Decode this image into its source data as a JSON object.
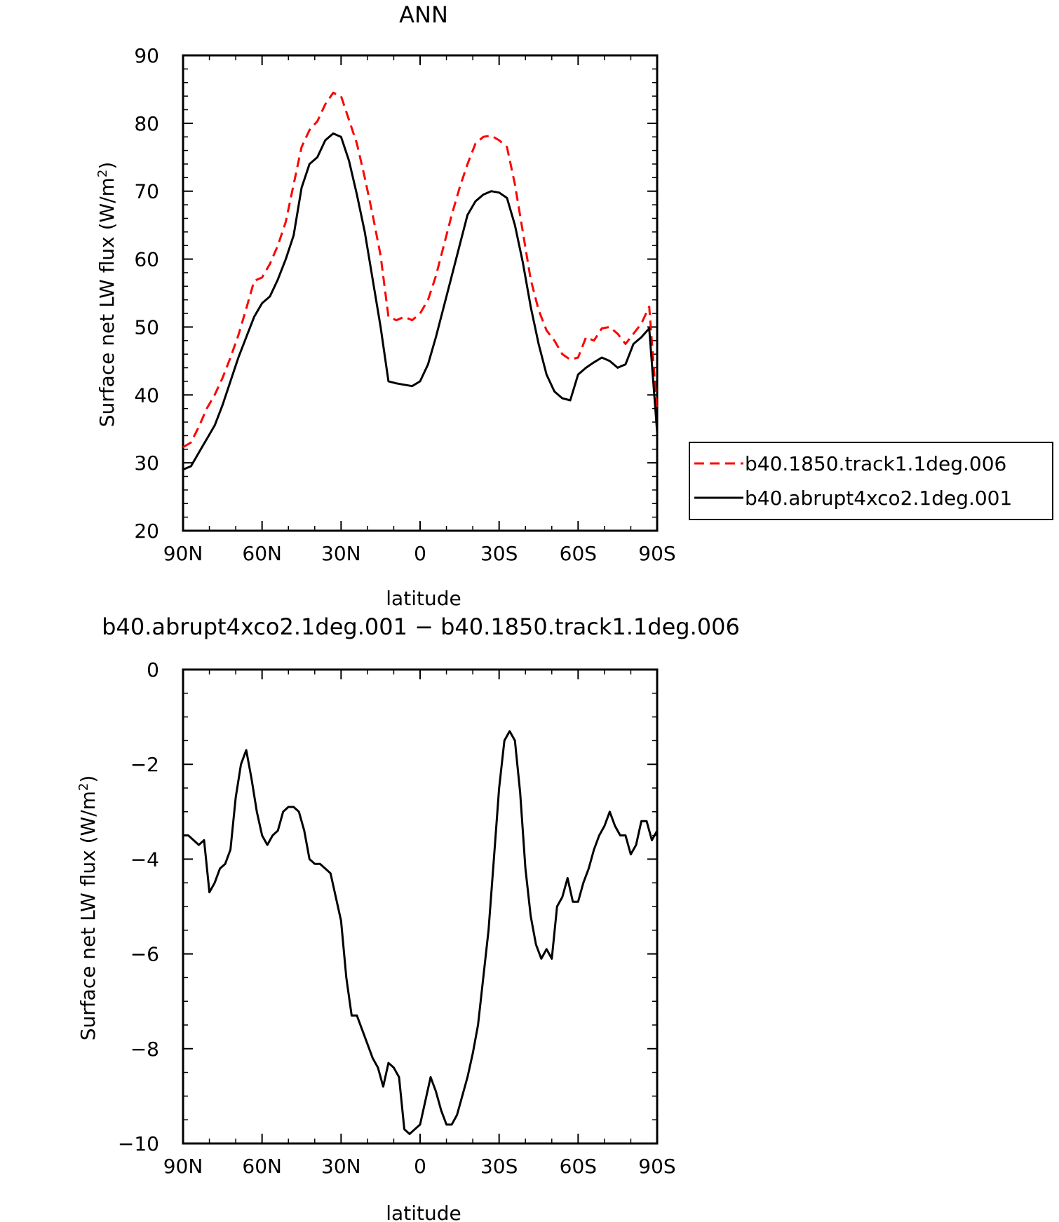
{
  "chart_data": [
    {
      "type": "line",
      "title": "ANN",
      "xlabel": "latitude",
      "ylabel": "Surface net LW flux (W/m",
      "ylabel_sup": "2",
      "ylabel_close": ")",
      "xlim": [
        90,
        -90
      ],
      "ylim": [
        20,
        90
      ],
      "x_ticks": [
        90,
        60,
        30,
        0,
        -30,
        -60,
        -90
      ],
      "x_tick_labels": [
        "90N",
        "60N",
        "30N",
        "0",
        "30S",
        "60S",
        "90S"
      ],
      "y_ticks": [
        20,
        30,
        40,
        50,
        60,
        70,
        80,
        90
      ],
      "y_tick_labels": [
        "20",
        "30",
        "40",
        "50",
        "60",
        "70",
        "80",
        "90"
      ],
      "grid": false,
      "legend": "right",
      "series": [
        {
          "name": "b40.1850.track1.1deg.006",
          "color": "#ff0000",
          "dash": "dashed",
          "x": [
            90,
            87,
            84,
            81,
            78,
            75,
            72,
            69,
            66,
            63,
            60,
            57,
            54,
            51,
            48,
            45,
            42,
            39,
            36,
            33,
            30,
            27,
            24,
            21,
            18,
            15,
            12,
            9,
            6,
            3,
            0,
            -3,
            -6,
            -9,
            -12,
            -15,
            -18,
            -21,
            -24,
            -27,
            -30,
            -33,
            -36,
            -39,
            -42,
            -45,
            -48,
            -51,
            -54,
            -57,
            -60,
            -63,
            -66,
            -69,
            -72,
            -75,
            -78,
            -81,
            -84,
            -87,
            -90
          ],
          "y": [
            32.3,
            33.0,
            35.3,
            38.0,
            40.0,
            42.5,
            45.5,
            48.8,
            52.7,
            56.8,
            57.3,
            59.3,
            62.0,
            65.5,
            71.0,
            76.5,
            79.0,
            80.3,
            82.8,
            84.5,
            84.0,
            80.5,
            77.0,
            72.0,
            66.5,
            60.5,
            51.5,
            51.0,
            51.5,
            51.0,
            52.0,
            54.0,
            57.5,
            62.0,
            66.5,
            70.5,
            74.0,
            77.0,
            78.0,
            78.2,
            77.5,
            76.5,
            71.0,
            64.0,
            57.0,
            52.5,
            49.5,
            48.0,
            46.0,
            45.2,
            45.5,
            48.5,
            48.0,
            49.8,
            50.0,
            49.0,
            47.5,
            49.0,
            50.5,
            53.0,
            37.5
          ]
        },
        {
          "name": "b40.abrupt4xco2.1deg.001",
          "color": "#000000",
          "dash": "solid",
          "x": [
            90,
            87,
            84,
            81,
            78,
            75,
            72,
            69,
            66,
            63,
            60,
            57,
            54,
            51,
            48,
            45,
            42,
            39,
            36,
            33,
            30,
            27,
            24,
            21,
            18,
            15,
            12,
            9,
            6,
            3,
            0,
            -3,
            -6,
            -9,
            -12,
            -15,
            -18,
            -21,
            -24,
            -27,
            -30,
            -33,
            -36,
            -39,
            -42,
            -45,
            -48,
            -51,
            -54,
            -57,
            -60,
            -63,
            -66,
            -69,
            -72,
            -75,
            -78,
            -81,
            -84,
            -87,
            -90
          ],
          "y": [
            29.0,
            29.5,
            31.5,
            33.5,
            35.5,
            38.5,
            42.0,
            45.5,
            48.5,
            51.5,
            53.5,
            54.5,
            57.0,
            60.0,
            63.5,
            70.5,
            74.0,
            75.0,
            77.5,
            78.5,
            78.0,
            74.5,
            69.5,
            64.0,
            57.0,
            50.0,
            42.0,
            41.7,
            41.5,
            41.3,
            42.0,
            44.5,
            48.5,
            53.0,
            57.5,
            62.0,
            66.5,
            68.5,
            69.5,
            70.0,
            69.8,
            69.0,
            65.0,
            59.5,
            53.0,
            47.5,
            43.0,
            40.5,
            39.5,
            39.2,
            43.0,
            44.0,
            44.8,
            45.5,
            45.0,
            44.0,
            44.5,
            47.5,
            48.5,
            49.8,
            34.5
          ]
        }
      ]
    },
    {
      "type": "line",
      "title": "b40.abrupt4xco2.1deg.001 − b40.1850.track1.1deg.006",
      "xlabel": "latitude",
      "ylabel": "Surface net LW flux (W/m",
      "ylabel_sup": "2",
      "ylabel_close": ")",
      "xlim": [
        90,
        -90
      ],
      "ylim": [
        -10,
        0
      ],
      "x_ticks": [
        90,
        60,
        30,
        0,
        -30,
        -60,
        -90
      ],
      "x_tick_labels": [
        "90N",
        "60N",
        "30N",
        "0",
        "30S",
        "60S",
        "90S"
      ],
      "y_ticks": [
        0,
        -2,
        -4,
        -6,
        -8,
        -10
      ],
      "y_tick_labels": [
        "0",
        "−2",
        "−4",
        "−6",
        "−8",
        "−10"
      ],
      "grid": false,
      "series": [
        {
          "color": "#000000",
          "dash": "solid",
          "x": [
            90,
            88,
            86,
            84,
            82,
            80,
            78,
            76,
            74,
            72,
            70,
            68,
            66,
            64,
            62,
            60,
            58,
            56,
            54,
            52,
            50,
            48,
            46,
            44,
            42,
            40,
            38,
            36,
            34,
            32,
            30,
            28,
            26,
            24,
            22,
            20,
            18,
            16,
            14,
            12,
            10,
            8,
            6,
            4,
            2,
            0,
            -2,
            -4,
            -6,
            -8,
            -10,
            -12,
            -14,
            -16,
            -18,
            -20,
            -22,
            -24,
            -26,
            -28,
            -30,
            -32,
            -34,
            -36,
            -38,
            -40,
            -42,
            -44,
            -46,
            -48,
            -50,
            -52,
            -54,
            -56,
            -58,
            -60,
            -62,
            -64,
            -66,
            -68,
            -70,
            -72,
            -74,
            -76,
            -78,
            -80,
            -82,
            -84,
            -86,
            -88,
            -90
          ],
          "y": [
            -3.5,
            -3.5,
            -3.6,
            -3.7,
            -3.6,
            -4.7,
            -4.5,
            -4.2,
            -4.1,
            -3.8,
            -2.7,
            -2.0,
            -1.7,
            -2.3,
            -3.0,
            -3.5,
            -3.7,
            -3.5,
            -3.4,
            -3.0,
            -2.9,
            -2.9,
            -3.0,
            -3.4,
            -4.0,
            -4.1,
            -4.1,
            -4.2,
            -4.3,
            -4.8,
            -5.3,
            -6.5,
            -7.3,
            -7.3,
            -7.6,
            -7.9,
            -8.2,
            -8.4,
            -8.8,
            -8.3,
            -8.4,
            -8.6,
            -9.7,
            -9.8,
            -9.7,
            -9.6,
            -9.1,
            -8.6,
            -8.9,
            -9.3,
            -9.6,
            -9.6,
            -9.4,
            -9.0,
            -8.6,
            -8.1,
            -7.5,
            -6.5,
            -5.5,
            -4.0,
            -2.5,
            -1.5,
            -1.3,
            -1.5,
            -2.6,
            -4.2,
            -5.2,
            -5.8,
            -6.1,
            -5.9,
            -6.1,
            -5.0,
            -4.8,
            -4.4,
            -4.9,
            -4.9,
            -4.5,
            -4.2,
            -3.8,
            -3.5,
            -3.3,
            -3.0,
            -3.3,
            -3.5,
            -3.5,
            -3.9,
            -3.7,
            -3.2,
            -3.2,
            -3.6,
            -3.4
          ]
        }
      ]
    }
  ]
}
